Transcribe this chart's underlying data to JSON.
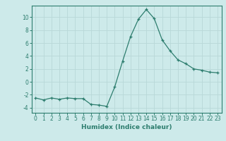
{
  "x": [
    0,
    1,
    2,
    3,
    4,
    5,
    6,
    7,
    8,
    9,
    10,
    11,
    12,
    13,
    14,
    15,
    16,
    17,
    18,
    19,
    20,
    21,
    22,
    23
  ],
  "y": [
    -2.5,
    -2.8,
    -2.5,
    -2.7,
    -2.5,
    -2.6,
    -2.6,
    -3.5,
    -3.6,
    -3.8,
    -0.8,
    3.2,
    7.0,
    9.7,
    11.2,
    9.8,
    6.5,
    4.8,
    3.4,
    2.8,
    2.0,
    1.8,
    1.5,
    1.4
  ],
  "line_color": "#2d7d6e",
  "marker": "+",
  "bg_color": "#cdeaea",
  "grid_color": "#b8d8d8",
  "xlabel": "Humidex (Indice chaleur)",
  "ylim": [
    -4.8,
    11.8
  ],
  "yticks": [
    -4,
    -2,
    0,
    2,
    4,
    6,
    8,
    10
  ],
  "xticks": [
    0,
    1,
    2,
    3,
    4,
    5,
    6,
    7,
    8,
    9,
    10,
    11,
    12,
    13,
    14,
    15,
    16,
    17,
    18,
    19,
    20,
    21,
    22,
    23
  ],
  "tick_fontsize": 5.5,
  "xlabel_fontsize": 6.5,
  "line_width": 0.9,
  "marker_size": 3.0
}
